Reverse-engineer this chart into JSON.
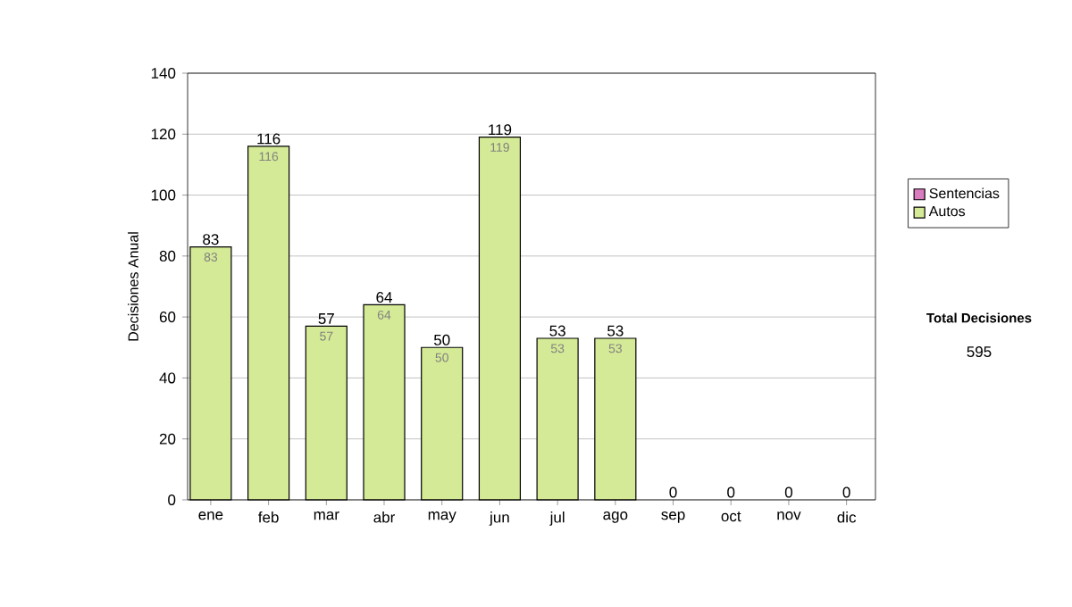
{
  "chart_data": {
    "type": "bar",
    "stacked": true,
    "ylabel": "Decisiones Anual",
    "categories": [
      "ene",
      "feb",
      "mar",
      "abr",
      "may",
      "jun",
      "jul",
      "ago",
      "sep",
      "oct",
      "nov",
      "dic"
    ],
    "series": [
      {
        "name": "Sentencias",
        "color": "#d97cc0",
        "values": [
          0,
          0,
          0,
          0,
          0,
          0,
          0,
          0,
          0,
          0,
          0,
          0
        ]
      },
      {
        "name": "Autos",
        "color": "#d4ea96",
        "values": [
          83,
          116,
          57,
          64,
          50,
          119,
          53,
          53,
          0,
          0,
          0,
          0
        ],
        "value_labels": [
          "83",
          "116",
          "57",
          "64",
          "50",
          "119",
          "53",
          "53",
          null,
          null,
          null,
          null
        ]
      }
    ],
    "totals": [
      "83",
      "116",
      "57",
      "64",
      "50",
      "119",
      "53",
      "53",
      "0",
      "0",
      "0",
      "0"
    ],
    "ylim": [
      0,
      140
    ],
    "yticks": [
      0,
      20,
      40,
      60,
      80,
      100,
      120,
      140
    ],
    "grid": "y",
    "legend": "right",
    "annotations": [
      "Total Decisiones",
      "595"
    ]
  }
}
